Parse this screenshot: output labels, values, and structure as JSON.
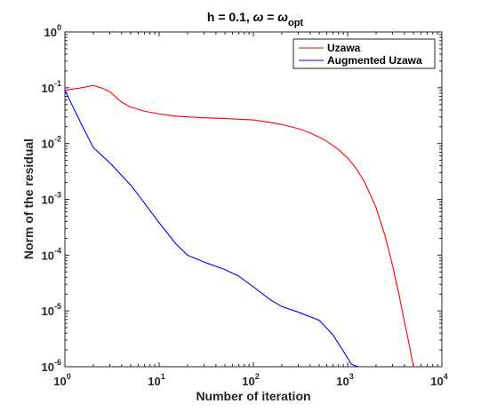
{
  "chart_data": {
    "type": "line",
    "title": {
      "prefix": "h = 0.1, ",
      "omega": "ω",
      "equals": " = ",
      "omega2": "ω",
      "subscript": "opt"
    },
    "xlabel": "Number of iteration",
    "ylabel": "Norm of the residual",
    "xscale": "log",
    "yscale": "log",
    "xlim": [
      1,
      10000
    ],
    "ylim": [
      1e-06,
      1
    ],
    "grid": false,
    "legend_position": "top-right",
    "x_ticks": [
      {
        "value": 1,
        "base": "10",
        "exp": "0"
      },
      {
        "value": 10,
        "base": "10",
        "exp": "1"
      },
      {
        "value": 100,
        "base": "10",
        "exp": "2"
      },
      {
        "value": 1000,
        "base": "10",
        "exp": "3"
      },
      {
        "value": 10000,
        "base": "10",
        "exp": "4"
      }
    ],
    "y_ticks": [
      {
        "value": 1e-06,
        "base": "10",
        "exp": "-6"
      },
      {
        "value": 1e-05,
        "base": "10",
        "exp": "-5"
      },
      {
        "value": 0.0001,
        "base": "10",
        "exp": "-4"
      },
      {
        "value": 0.001,
        "base": "10",
        "exp": "-3"
      },
      {
        "value": 0.01,
        "base": "10",
        "exp": "-2"
      },
      {
        "value": 0.1,
        "base": "10",
        "exp": "-1"
      },
      {
        "value": 1,
        "base": "10",
        "exp": "0"
      }
    ],
    "series": [
      {
        "name": "Uzawa",
        "color": "#ff0000",
        "x": [
          1,
          1.5,
          2,
          2.5,
          3,
          4,
          5,
          7,
          10,
          15,
          20,
          30,
          50,
          80,
          100,
          150,
          200,
          300,
          400,
          500,
          600,
          800,
          1000,
          1200,
          1500,
          2000,
          2500,
          3000,
          3500,
          4000,
          4500,
          5000
        ],
        "y": [
          0.09,
          0.1,
          0.11,
          0.098,
          0.085,
          0.055,
          0.045,
          0.038,
          0.034,
          0.031,
          0.03,
          0.029,
          0.028,
          0.027,
          0.0265,
          0.024,
          0.022,
          0.0185,
          0.0155,
          0.013,
          0.011,
          0.0078,
          0.0055,
          0.0038,
          0.0021,
          0.00072,
          0.00022,
          6.5e-05,
          2e-05,
          6.5e-06,
          2.5e-06,
          1e-06
        ]
      },
      {
        "name": "Augmented Uzawa",
        "color": "#0000ff",
        "x": [
          1,
          1.5,
          2,
          3,
          5,
          7,
          10,
          15,
          20,
          30,
          50,
          70,
          100,
          150,
          200,
          300,
          500,
          700,
          900,
          1100,
          1300
        ],
        "y": [
          0.09,
          0.022,
          0.0085,
          0.0045,
          0.0018,
          0.00085,
          0.00038,
          0.00016,
          0.0001,
          7.5e-05,
          5.5e-05,
          4.2e-05,
          2.7e-05,
          1.6e-05,
          1.2e-05,
          9.5e-06,
          6.8e-06,
          3.7e-06,
          1.9e-06,
          1.1e-06,
          1e-06
        ]
      }
    ]
  }
}
